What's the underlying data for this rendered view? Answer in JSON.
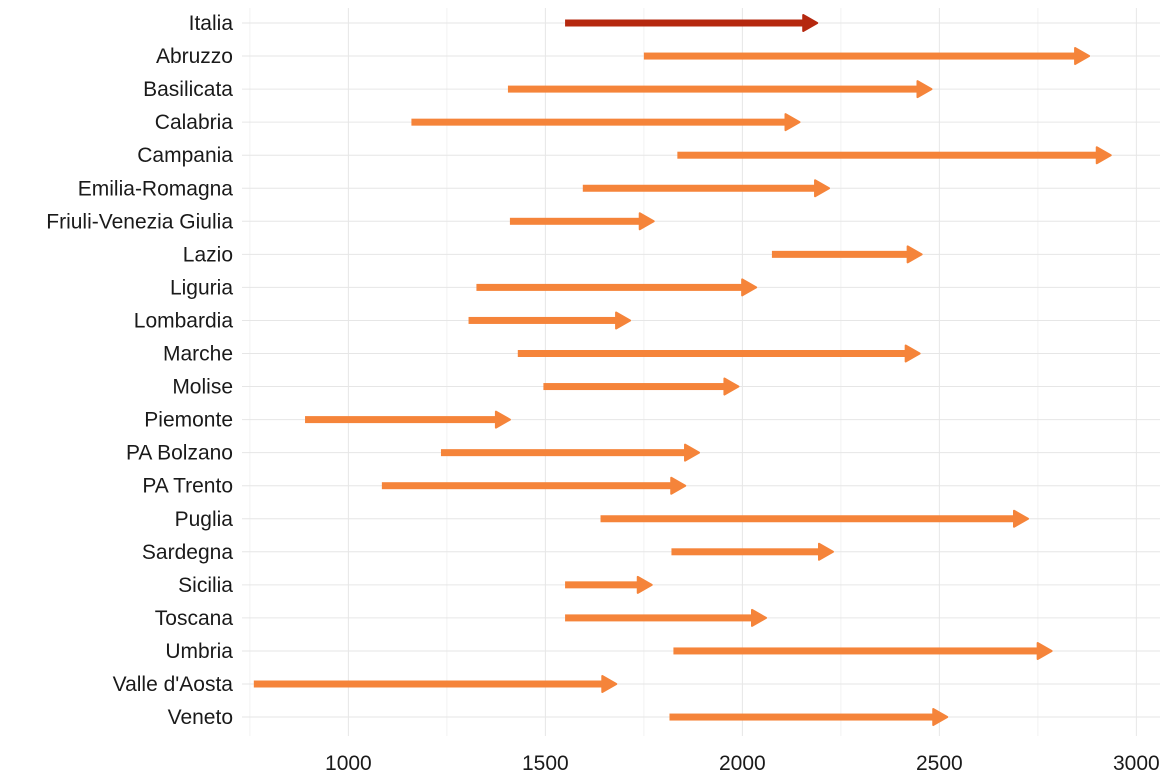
{
  "chart_data": {
    "type": "arrow-range",
    "title": "",
    "xlabel": "",
    "ylabel": "",
    "xlim": [
      730,
      3060
    ],
    "x_ticks": [
      1000,
      1500,
      2000,
      2500,
      3000
    ],
    "x_tick_labels": [
      "1000",
      "1500",
      "2000",
      "2500",
      "3000"
    ],
    "grid": true,
    "legend": "none",
    "colors": {
      "highlight": "#b5280f",
      "default": "#f5843a"
    },
    "categories": [
      {
        "label": "Italia",
        "start": 1550,
        "end": 2190,
        "highlight": true
      },
      {
        "label": "Abruzzo",
        "start": 1750,
        "end": 2880,
        "highlight": false
      },
      {
        "label": "Basilicata",
        "start": 1405,
        "end": 2480,
        "highlight": false
      },
      {
        "label": "Calabria",
        "start": 1160,
        "end": 2145,
        "highlight": false
      },
      {
        "label": "Campania",
        "start": 1835,
        "end": 2935,
        "highlight": false
      },
      {
        "label": "Emilia-Romagna",
        "start": 1595,
        "end": 2220,
        "highlight": false
      },
      {
        "label": "Friuli-Venezia Giulia",
        "start": 1410,
        "end": 1775,
        "highlight": false
      },
      {
        "label": "Lazio",
        "start": 2075,
        "end": 2455,
        "highlight": false
      },
      {
        "label": "Liguria",
        "start": 1325,
        "end": 2035,
        "highlight": false
      },
      {
        "label": "Lombardia",
        "start": 1305,
        "end": 1715,
        "highlight": false
      },
      {
        "label": "Marche",
        "start": 1430,
        "end": 2450,
        "highlight": false
      },
      {
        "label": "Molise",
        "start": 1495,
        "end": 1990,
        "highlight": false
      },
      {
        "label": "Piemonte",
        "start": 890,
        "end": 1410,
        "highlight": false
      },
      {
        "label": "PA Bolzano",
        "start": 1235,
        "end": 1890,
        "highlight": false
      },
      {
        "label": "PA Trento",
        "start": 1085,
        "end": 1855,
        "highlight": false
      },
      {
        "label": "Puglia",
        "start": 1640,
        "end": 2725,
        "highlight": false
      },
      {
        "label": "Sardegna",
        "start": 1820,
        "end": 2230,
        "highlight": false
      },
      {
        "label": "Sicilia",
        "start": 1550,
        "end": 1770,
        "highlight": false
      },
      {
        "label": "Toscana",
        "start": 1550,
        "end": 2060,
        "highlight": false
      },
      {
        "label": "Umbria",
        "start": 1825,
        "end": 2785,
        "highlight": false
      },
      {
        "label": "Valle d'Aosta",
        "start": 760,
        "end": 1680,
        "highlight": false
      },
      {
        "label": "Veneto",
        "start": 1815,
        "end": 2520,
        "highlight": false
      }
    ]
  }
}
